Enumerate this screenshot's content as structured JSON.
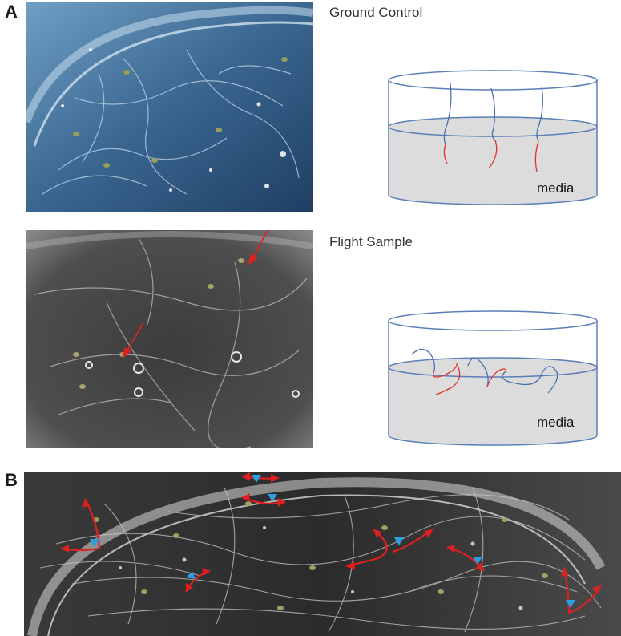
{
  "panels": {
    "a": {
      "letter": "A"
    },
    "b": {
      "letter": "B"
    }
  },
  "ground_control": {
    "title": "Ground Control",
    "media_label": "media"
  },
  "flight_sample": {
    "title": "Flight Sample",
    "media_label": "media"
  },
  "colors": {
    "vessel_outline": "#5b7fb8",
    "media_fill": "#dcdcdc",
    "root_blue": "#4a6fb5",
    "root_red": "#e03030",
    "arrow_red": "#e02020",
    "arrow_blue": "#2aa0e0"
  }
}
